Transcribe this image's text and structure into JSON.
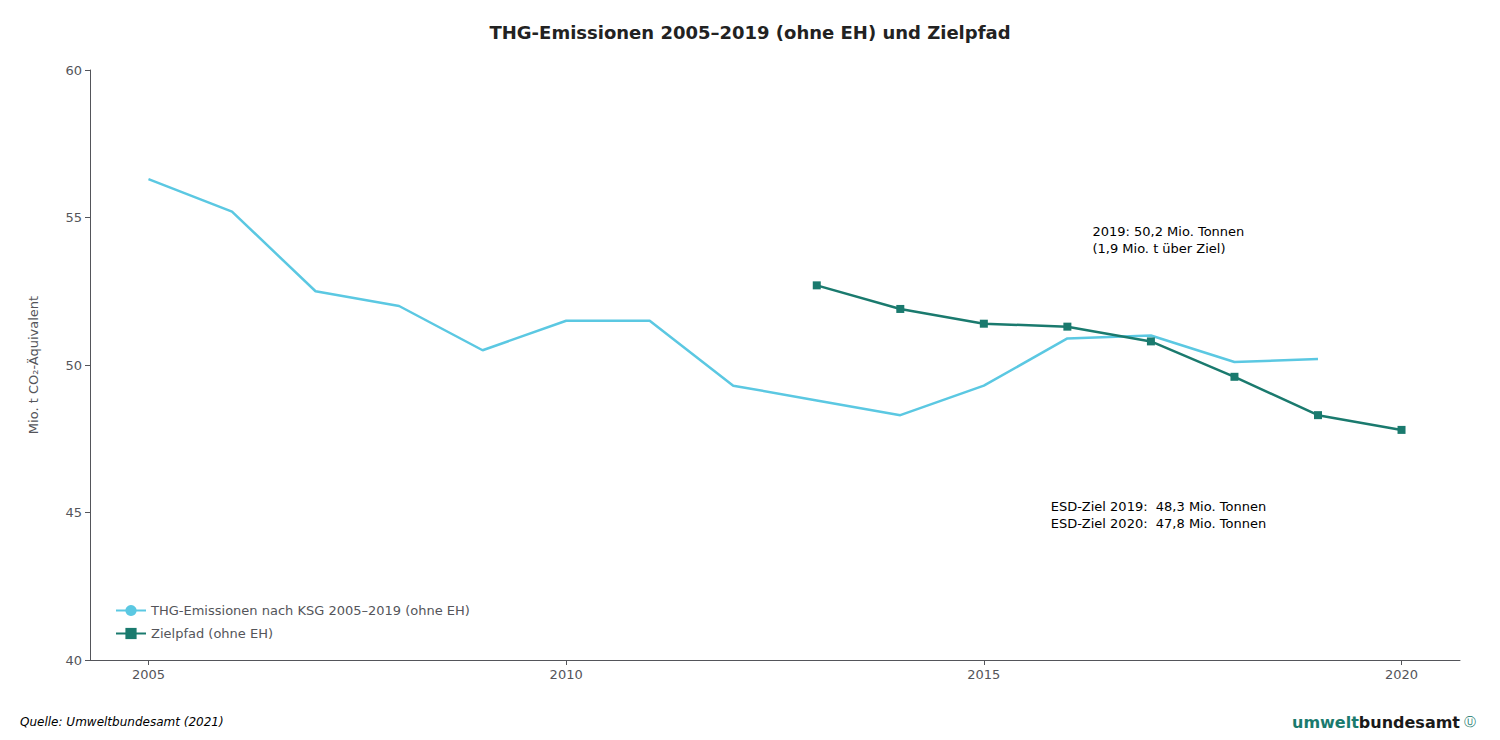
{
  "chart_data": {
    "type": "line",
    "title": "THG-Emissionen 2005–2019 (ohne EH) und Zielpfad",
    "ylabel": "Mio. t CO₂-Äquivalent",
    "xlim": [
      2004.3,
      2020.7
    ],
    "xticks": [
      2005,
      2010,
      2015,
      2020
    ],
    "ylim": [
      40,
      60
    ],
    "yticks": [
      40,
      45,
      50,
      55,
      60
    ],
    "grid": false,
    "legend": "lower left",
    "series": [
      {
        "name": "THG-Emissionen nach KSG 2005–2019 (ohne EH)",
        "color": "#5BC8E2",
        "marker": "none",
        "x": [
          2005,
          2006,
          2007,
          2008,
          2009,
          2010,
          2011,
          2012,
          2013,
          2014,
          2015,
          2016,
          2017,
          2018,
          2019
        ],
        "values": [
          56.3,
          55.2,
          52.5,
          52.0,
          50.5,
          51.5,
          51.5,
          49.3,
          48.8,
          48.3,
          49.3,
          50.9,
          51.0,
          50.1,
          50.2
        ]
      },
      {
        "name": "Zielpfad (ohne EH)",
        "color": "#1A7A6E",
        "marker": "square",
        "x": [
          2013,
          2014,
          2015,
          2016,
          2017,
          2018,
          2019,
          2020
        ],
        "values": [
          52.7,
          51.9,
          51.4,
          51.3,
          50.8,
          49.6,
          48.3,
          47.8
        ]
      }
    ],
    "annotations": [
      {
        "text": "2019: 50,2 Mio. Tonnen\n(1,9 Mio. t über Ziel)",
        "x": 2016.3,
        "y": 54.8
      },
      {
        "text": "ESD-Ziel 2019:  48,3 Mio. Tonnen\nESD-Ziel 2020:  47,8 Mio. Tonnen",
        "x": 2015.8,
        "y": 45.5
      },
      {
        "text": "Quelle: Umweltbundesamt (2021)"
      },
      {
        "text": "umwelt",
        "color": "#1A7A6E"
      },
      {
        "text": "bundesamt",
        "color": "#1a1a1a"
      },
      {
        "text": "Ⓤ",
        "color": "#1A7A6E"
      }
    ]
  }
}
